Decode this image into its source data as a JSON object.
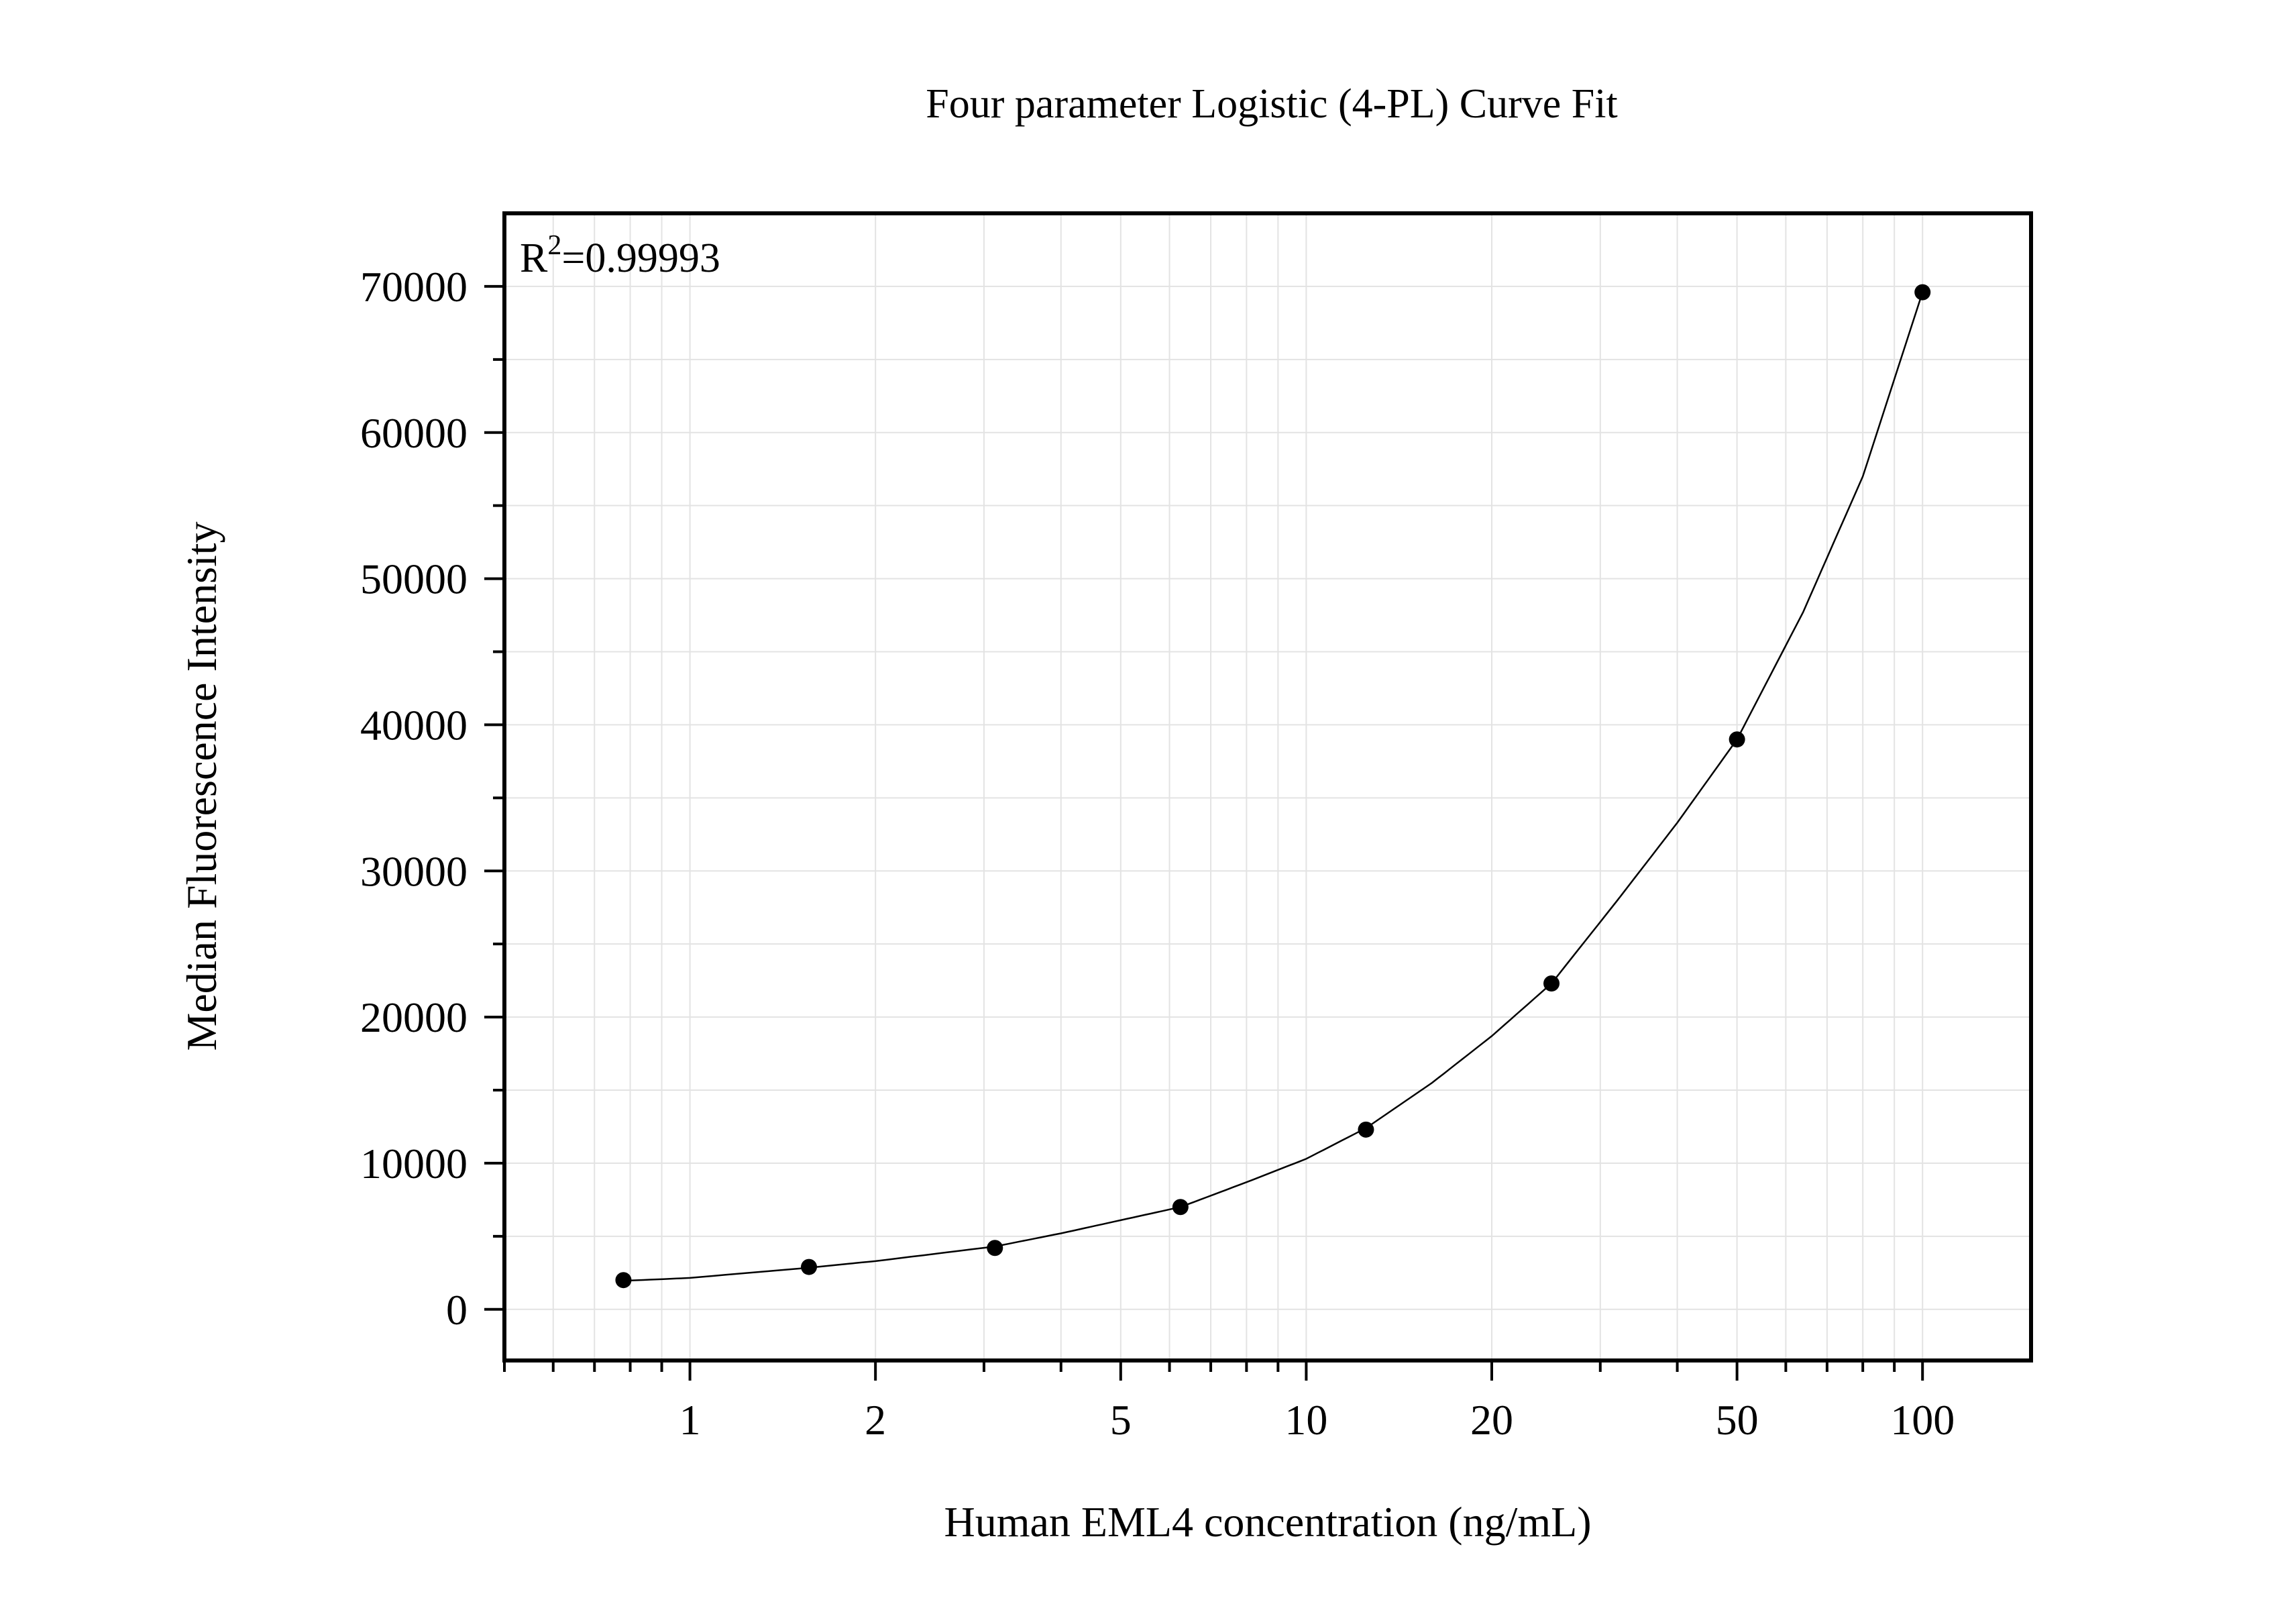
{
  "chart_data": {
    "type": "scatter",
    "title": "Four parameter Logistic (4-PL) Curve Fit",
    "xlabel": "Human EML4 concentration (ng/mL)",
    "ylabel": "Median Fluorescence Intensity",
    "x_scale": "log",
    "xlim": [
      0.5,
      150
    ],
    "ylim": [
      -3500,
      75000
    ],
    "x_ticks": [
      1,
      2,
      5,
      10,
      20,
      50,
      100
    ],
    "x_tick_labels": [
      "1",
      "2",
      "5",
      "10",
      "20",
      "50",
      "100"
    ],
    "y_ticks": [
      0,
      10000,
      20000,
      30000,
      40000,
      50000,
      60000,
      70000
    ],
    "y_tick_labels": [
      "0",
      "10000",
      "20000",
      "30000",
      "40000",
      "50000",
      "60000",
      "70000"
    ],
    "grid": true,
    "annotation": {
      "prefix": "R",
      "sup": "2",
      "suffix": "=0.99993"
    },
    "points": [
      {
        "x": 0.78,
        "y": 2000
      },
      {
        "x": 1.56,
        "y": 2900
      },
      {
        "x": 3.125,
        "y": 4200
      },
      {
        "x": 6.25,
        "y": 7000
      },
      {
        "x": 12.5,
        "y": 12300
      },
      {
        "x": 25,
        "y": 22300
      },
      {
        "x": 50,
        "y": 39000
      },
      {
        "x": 100,
        "y": 69600
      }
    ],
    "fit_curve": {
      "x": [
        0.78,
        1,
        1.56,
        2,
        3.125,
        4,
        5,
        6.25,
        8,
        10,
        12.5,
        16,
        20,
        25,
        32,
        40,
        50,
        64,
        80,
        100
      ],
      "y": [
        1950,
        2150,
        2850,
        3300,
        4300,
        5200,
        6100,
        7000,
        8700,
        10300,
        12400,
        15500,
        18700,
        22300,
        28000,
        33300,
        39000,
        47700,
        57000,
        69600
      ]
    },
    "marker_color": "#000000",
    "line_color": "#000000"
  }
}
